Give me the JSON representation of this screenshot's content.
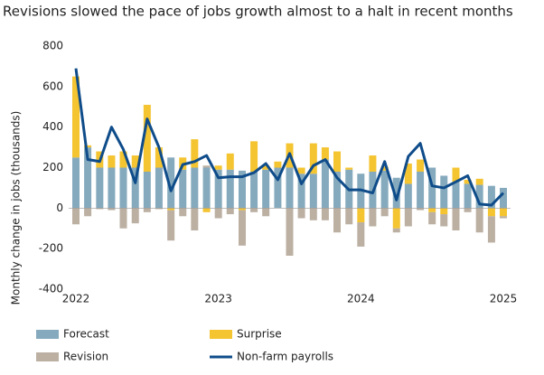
{
  "chart_data": {
    "type": "stacked-bar-line",
    "title": "Revisions slowed the pace of jobs growth almost to a halt in recent months",
    "y_label": "Monthly change in jobs (thousands)",
    "x": [
      2022,
      2022.083,
      2022.167,
      2022.25,
      2022.333,
      2022.417,
      2022.5,
      2022.583,
      2022.667,
      2022.75,
      2022.833,
      2022.917,
      2023,
      2023.083,
      2023.167,
      2023.25,
      2023.333,
      2023.417,
      2023.5,
      2023.583,
      2023.667,
      2023.75,
      2023.833,
      2023.917,
      2024,
      2024.083,
      2024.167,
      2024.25,
      2024.333,
      2024.417,
      2024.5,
      2024.583,
      2024.667,
      2024.75,
      2024.833,
      2024.917,
      2025
    ],
    "xlim": [
      2022,
      2025
    ],
    "xticks": [
      2022,
      2023,
      2024,
      2025
    ],
    "ylim": [
      -400,
      800
    ],
    "yticks": [
      -400,
      -200,
      0,
      200,
      400,
      600,
      800
    ],
    "series": [
      {
        "name": "Forecast",
        "kind": "bar",
        "color": "#86aabd",
        "values": [
          250,
          300,
          200,
          200,
          200,
          200,
          180,
          200,
          250,
          190,
          200,
          200,
          190,
          190,
          185,
          180,
          190,
          200,
          200,
          170,
          170,
          240,
          180,
          190,
          170,
          180,
          185,
          150,
          120,
          180,
          200,
          160,
          130,
          120,
          115,
          110,
          100
        ]
      },
      {
        "name": "Surprise",
        "kind": "bar",
        "color": "#f4c431",
        "values": [
          400,
          10,
          80,
          60,
          80,
          60,
          330,
          100,
          -10,
          60,
          140,
          -20,
          20,
          80,
          -10,
          150,
          20,
          30,
          120,
          30,
          150,
          60,
          100,
          10,
          -70,
          80,
          20,
          -100,
          100,
          60,
          -20,
          -30,
          70,
          20,
          30,
          -40,
          -40
        ]
      },
      {
        "name": "Revision",
        "kind": "bar",
        "color": "#bcb0a3",
        "values": [
          -80,
          -40,
          -5,
          -10,
          -100,
          -75,
          -20,
          -5,
          -150,
          -40,
          -110,
          10,
          -50,
          -30,
          -175,
          -20,
          -40,
          0,
          -235,
          -50,
          -60,
          -60,
          -120,
          -80,
          -120,
          -90,
          -40,
          -20,
          -90,
          -10,
          -60,
          -60,
          -110,
          -20,
          -120,
          -130,
          -10
        ]
      },
      {
        "name": "Non-farm payrolls",
        "kind": "line",
        "color": "#0f4c8a",
        "values": [
          690,
          240,
          230,
          400,
          290,
          125,
          440,
          300,
          85,
          215,
          230,
          260,
          150,
          155,
          155,
          175,
          220,
          140,
          270,
          120,
          210,
          240,
          150,
          90,
          90,
          75,
          230,
          40,
          255,
          320,
          110,
          100,
          130,
          160,
          20,
          15,
          75
        ]
      }
    ]
  }
}
